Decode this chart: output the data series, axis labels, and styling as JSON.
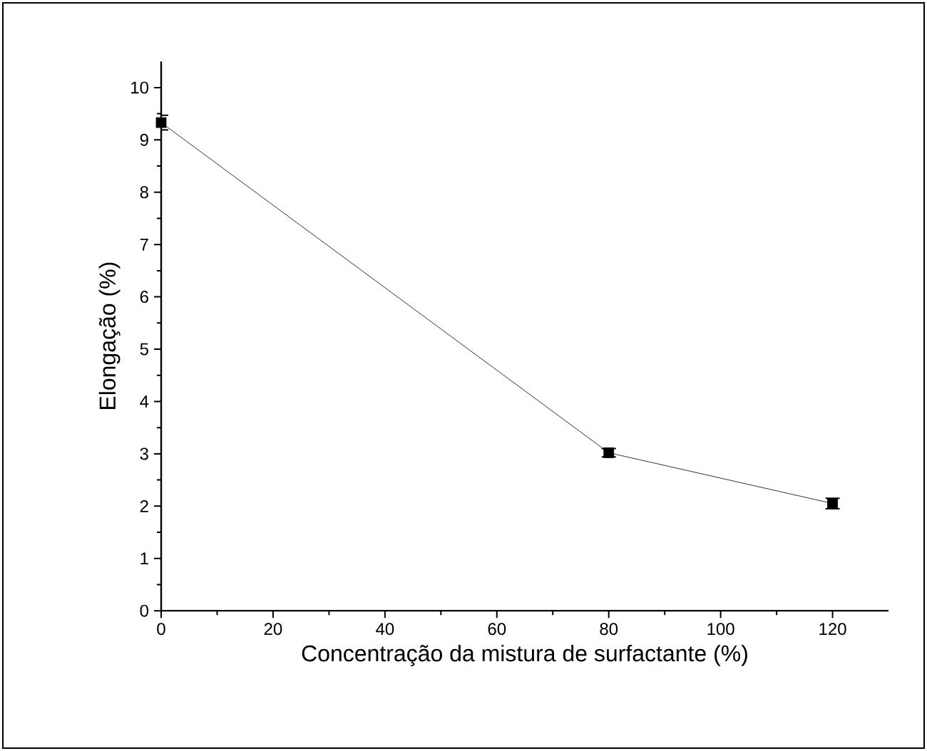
{
  "chart_data": {
    "type": "line",
    "xlabel": "Concentração da mistura de surfactante (%)",
    "ylabel": "Elongação (%)",
    "x": [
      0,
      80,
      120
    ],
    "values": [
      9.33,
      3.02,
      2.05
    ],
    "errors": [
      0.14,
      0.08,
      0.1
    ],
    "color": "#000000",
    "marker": "square",
    "line_style": "solid",
    "xlim": [
      0,
      130
    ],
    "ylim": [
      0,
      10.5
    ],
    "xticks": [
      0,
      20,
      40,
      60,
      80,
      100,
      120
    ],
    "yticks": [
      0,
      1,
      2,
      3,
      4,
      5,
      6,
      7,
      8,
      9,
      10
    ],
    "grid": false
  }
}
